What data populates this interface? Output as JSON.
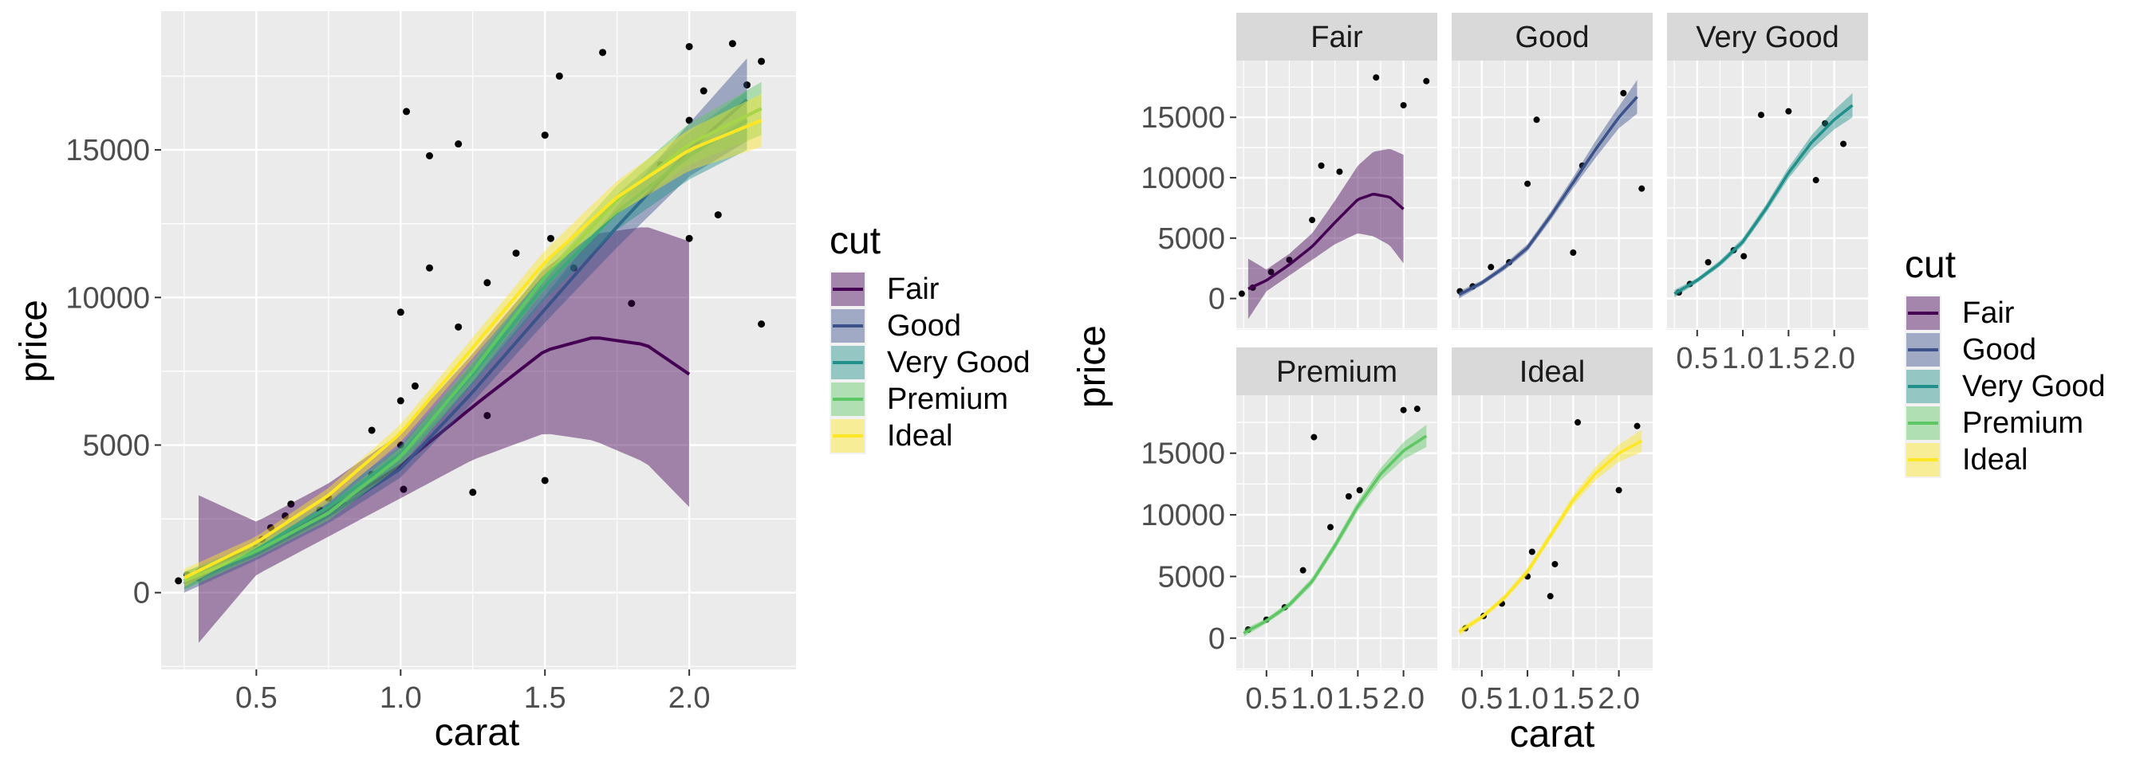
{
  "chart_data": [
    {
      "type": "scatter",
      "xlabel": "carat",
      "ylabel": "price",
      "xlim": [
        0.17,
        2.37
      ],
      "ylim": [
        -2600,
        19700
      ],
      "x_ticks": [
        "0.5",
        "1.0",
        "1.5",
        "2.0"
      ],
      "x_tick_values": [
        0.5,
        1.0,
        1.5,
        2.0
      ],
      "y_ticks": [
        "0",
        "5000",
        "10000",
        "15000"
      ],
      "y_tick_values": [
        0,
        5000,
        10000,
        15000
      ],
      "grid": true,
      "legend": {
        "title": "cut",
        "placement": "right",
        "entries": [
          "Fair",
          "Good",
          "Very Good",
          "Premium",
          "Ideal"
        ]
      },
      "series": [
        {
          "name": "Fair",
          "color": "#440154",
          "x": [
            0.3,
            0.5,
            0.75,
            1.0,
            1.25,
            1.5,
            1.67,
            1.85,
            2.0
          ],
          "y": [
            800,
            1500,
            2800,
            4300,
            6300,
            8200,
            8650,
            8400,
            7400
          ],
          "se": [
            2500,
            900,
            900,
            1100,
            1800,
            2800,
            3500,
            4000,
            4500
          ]
        },
        {
          "name": "Good",
          "color": "#3b528b",
          "x": [
            0.25,
            0.5,
            0.75,
            1.0,
            1.25,
            1.5,
            1.75,
            2.0,
            2.2
          ],
          "y": [
            300,
            1300,
            2600,
            4200,
            6800,
            9600,
            12400,
            15000,
            16700
          ],
          "se": [
            300,
            200,
            250,
            300,
            350,
            450,
            700,
            900,
            1400
          ]
        },
        {
          "name": "Very Good",
          "color": "#21908c",
          "x": [
            0.25,
            0.5,
            0.75,
            1.0,
            1.25,
            1.5,
            1.75,
            2.0,
            2.2
          ],
          "y": [
            400,
            1500,
            2900,
            4700,
            7400,
            10400,
            12900,
            14800,
            16000
          ],
          "se": [
            300,
            200,
            250,
            300,
            350,
            450,
            600,
            800,
            1000
          ]
        },
        {
          "name": "Premium",
          "color": "#5dc863",
          "x": [
            0.25,
            0.5,
            0.75,
            1.0,
            1.25,
            1.5,
            1.75,
            2.0,
            2.25
          ],
          "y": [
            400,
            1400,
            2700,
            4600,
            7500,
            10700,
            13300,
            15200,
            16400
          ],
          "se": [
            300,
            200,
            250,
            300,
            350,
            400,
            500,
            700,
            900
          ]
        },
        {
          "name": "Ideal",
          "color": "#fde725",
          "x": [
            0.25,
            0.5,
            0.75,
            1.0,
            1.25,
            1.5,
            1.75,
            2.0,
            2.25
          ],
          "y": [
            500,
            1700,
            3300,
            5400,
            8300,
            11200,
            13400,
            15000,
            16000
          ],
          "se": [
            300,
            200,
            250,
            300,
            350,
            400,
            550,
            700,
            900
          ]
        }
      ],
      "points": [
        {
          "x": 0.23,
          "y": 400
        },
        {
          "x": 0.26,
          "y": 600
        },
        {
          "x": 0.3,
          "y": 500
        },
        {
          "x": 0.3,
          "y": 700
        },
        {
          "x": 0.32,
          "y": 800
        },
        {
          "x": 0.35,
          "y": 900
        },
        {
          "x": 0.4,
          "y": 1000
        },
        {
          "x": 0.42,
          "y": 1200
        },
        {
          "x": 0.5,
          "y": 1500
        },
        {
          "x": 0.52,
          "y": 1800
        },
        {
          "x": 0.55,
          "y": 2200
        },
        {
          "x": 0.6,
          "y": 2600
        },
        {
          "x": 0.62,
          "y": 3000
        },
        {
          "x": 0.7,
          "y": 2500
        },
        {
          "x": 0.72,
          "y": 2800
        },
        {
          "x": 0.75,
          "y": 3200
        },
        {
          "x": 0.8,
          "y": 3000
        },
        {
          "x": 0.9,
          "y": 4000
        },
        {
          "x": 0.9,
          "y": 5500
        },
        {
          "x": 1.0,
          "y": 5000
        },
        {
          "x": 1.0,
          "y": 6500
        },
        {
          "x": 1.0,
          "y": 9500
        },
        {
          "x": 1.01,
          "y": 3500
        },
        {
          "x": 1.02,
          "y": 16300
        },
        {
          "x": 1.05,
          "y": 7000
        },
        {
          "x": 1.1,
          "y": 11000
        },
        {
          "x": 1.1,
          "y": 14800
        },
        {
          "x": 1.2,
          "y": 15200
        },
        {
          "x": 1.2,
          "y": 9000
        },
        {
          "x": 1.25,
          "y": 3400
        },
        {
          "x": 1.3,
          "y": 10500
        },
        {
          "x": 1.5,
          "y": 3800
        },
        {
          "x": 1.5,
          "y": 15500
        },
        {
          "x": 1.52,
          "y": 12000
        },
        {
          "x": 1.55,
          "y": 17500
        },
        {
          "x": 1.7,
          "y": 18300
        },
        {
          "x": 1.6,
          "y": 11000
        },
        {
          "x": 1.8,
          "y": 9800
        },
        {
          "x": 2.0,
          "y": 18500
        },
        {
          "x": 2.0,
          "y": 12000
        },
        {
          "x": 2.0,
          "y": 16000
        },
        {
          "x": 2.05,
          "y": 17000
        },
        {
          "x": 2.1,
          "y": 12800
        },
        {
          "x": 2.15,
          "y": 18600
        },
        {
          "x": 2.2,
          "y": 17200
        },
        {
          "x": 2.25,
          "y": 18000
        },
        {
          "x": 2.25,
          "y": 9100
        },
        {
          "x": 1.9,
          "y": 14500
        },
        {
          "x": 1.4,
          "y": 11500
        },
        {
          "x": 1.3,
          "y": 6000
        }
      ]
    },
    {
      "type": "scatter",
      "facets": [
        "Fair",
        "Good",
        "Very Good",
        "Premium",
        "Ideal"
      ],
      "xlabel": "carat",
      "ylabel": "price",
      "xlim": [
        0.17,
        2.37
      ],
      "ylim": [
        -2600,
        19700
      ],
      "x_ticks": [
        "0.5",
        "1.0",
        "1.5",
        "2.0"
      ],
      "x_tick_values": [
        0.5,
        1.0,
        1.5,
        2.0
      ],
      "y_ticks": [
        "0",
        "5000",
        "10000",
        "15000"
      ],
      "y_tick_values": [
        0,
        5000,
        10000,
        15000
      ],
      "grid": true,
      "legend": {
        "title": "cut",
        "placement": "right",
        "entries": [
          "Fair",
          "Good",
          "Very Good",
          "Premium",
          "Ideal"
        ]
      }
    }
  ]
}
